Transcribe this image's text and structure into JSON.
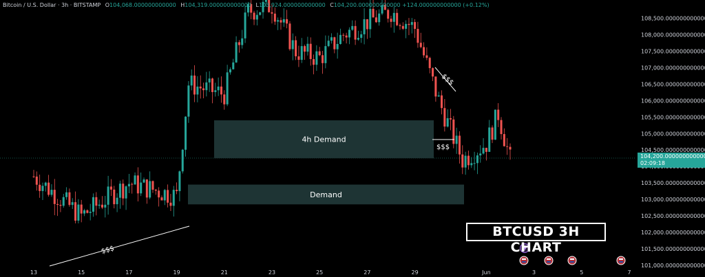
{
  "header": {
    "symbol": "Bitcoin / U.S. Dollar · 3h · BITSTAMP",
    "open_label": "O",
    "open": "104,068.000000000000",
    "high_label": "H",
    "high": "104,319.000000000000",
    "low_label": "L",
    "low": "103,924.000000000000",
    "close_label": "C",
    "close": "104,200.000000000000",
    "change": "+124.000000000000 (+0.12%)"
  },
  "badge": "BTCUSD 3H CHART",
  "last_price": {
    "value": "104,200.000000000000",
    "countdown": "02:09:18"
  },
  "colors": {
    "up": "#26a69a",
    "down": "#ef5350",
    "zone": "#1e3434",
    "background": "#000000"
  },
  "chart_data": {
    "type": "candlestick",
    "ylim": [
      101000,
      108750
    ],
    "y_ticks": [
      101000,
      101500,
      102000,
      102500,
      103000,
      103500,
      104000,
      104500,
      105000,
      105500,
      106000,
      106500,
      107000,
      107500,
      108000,
      108500
    ],
    "y_tick_labels": [
      "101,000.000000000000",
      "101,500.000000000000",
      "102,000.000000000000",
      "102,500.000000000000",
      "103,000.000000000000",
      "103,500.000000000000",
      "104,000.000000000000",
      "104,500.000000000000",
      "105,000.000000000000",
      "105,500.000000000000",
      "106,000.000000000000",
      "106,500.000000000000",
      "107,000.000000000000",
      "107,500.000000000000",
      "108,000.000000000000",
      "108,500.000000000000"
    ],
    "x_tick_labels": [
      "13",
      "15",
      "17",
      "19",
      "21",
      "23",
      "25",
      "27",
      "29",
      "Jun",
      "3",
      "5",
      "7"
    ],
    "zones": [
      {
        "label": "4h Demand",
        "from": "May 20",
        "to": "May 30",
        "low": 104250,
        "high": 105400
      },
      {
        "label": "Demand",
        "from": "May 19",
        "to": "May 31",
        "low": 102850,
        "high": 103450
      }
    ],
    "liquidity_marks": [
      {
        "label": "$$$",
        "note": "rising trendline from May 13 to May 19, 101,000 to 102,150"
      },
      {
        "label": "$$$",
        "note": "level near 104,650 at May 29–30"
      },
      {
        "label": "$$$",
        "note": "descending line near 106,500 on May 30"
      }
    ],
    "anchors": [
      {
        "date": "May 13",
        "price": 103700
      },
      {
        "date": "May 15",
        "price": 102500
      },
      {
        "date": "May 17",
        "price": 103500
      },
      {
        "date": "May 19",
        "price": 103100
      },
      {
        "date": "May 19",
        "price": 106500
      },
      {
        "date": "May 21",
        "price": 106200
      },
      {
        "date": "May 22",
        "price": 108700
      },
      {
        "date": "May 23",
        "price": 108900
      },
      {
        "date": "May 24",
        "price": 107500
      },
      {
        "date": "May 25",
        "price": 107300
      },
      {
        "date": "May 26",
        "price": 108000
      },
      {
        "date": "May 27",
        "price": 108400
      },
      {
        "date": "May 28",
        "price": 108700
      },
      {
        "date": "May 29",
        "price": 108200
      },
      {
        "date": "May 30",
        "price": 106000
      },
      {
        "date": "May 31",
        "price": 104200
      },
      {
        "date": "Jun 1",
        "price": 104700
      },
      {
        "date": "Jun 1",
        "price": 105600
      },
      {
        "date": "Jun 2",
        "price": 104200
      }
    ]
  }
}
